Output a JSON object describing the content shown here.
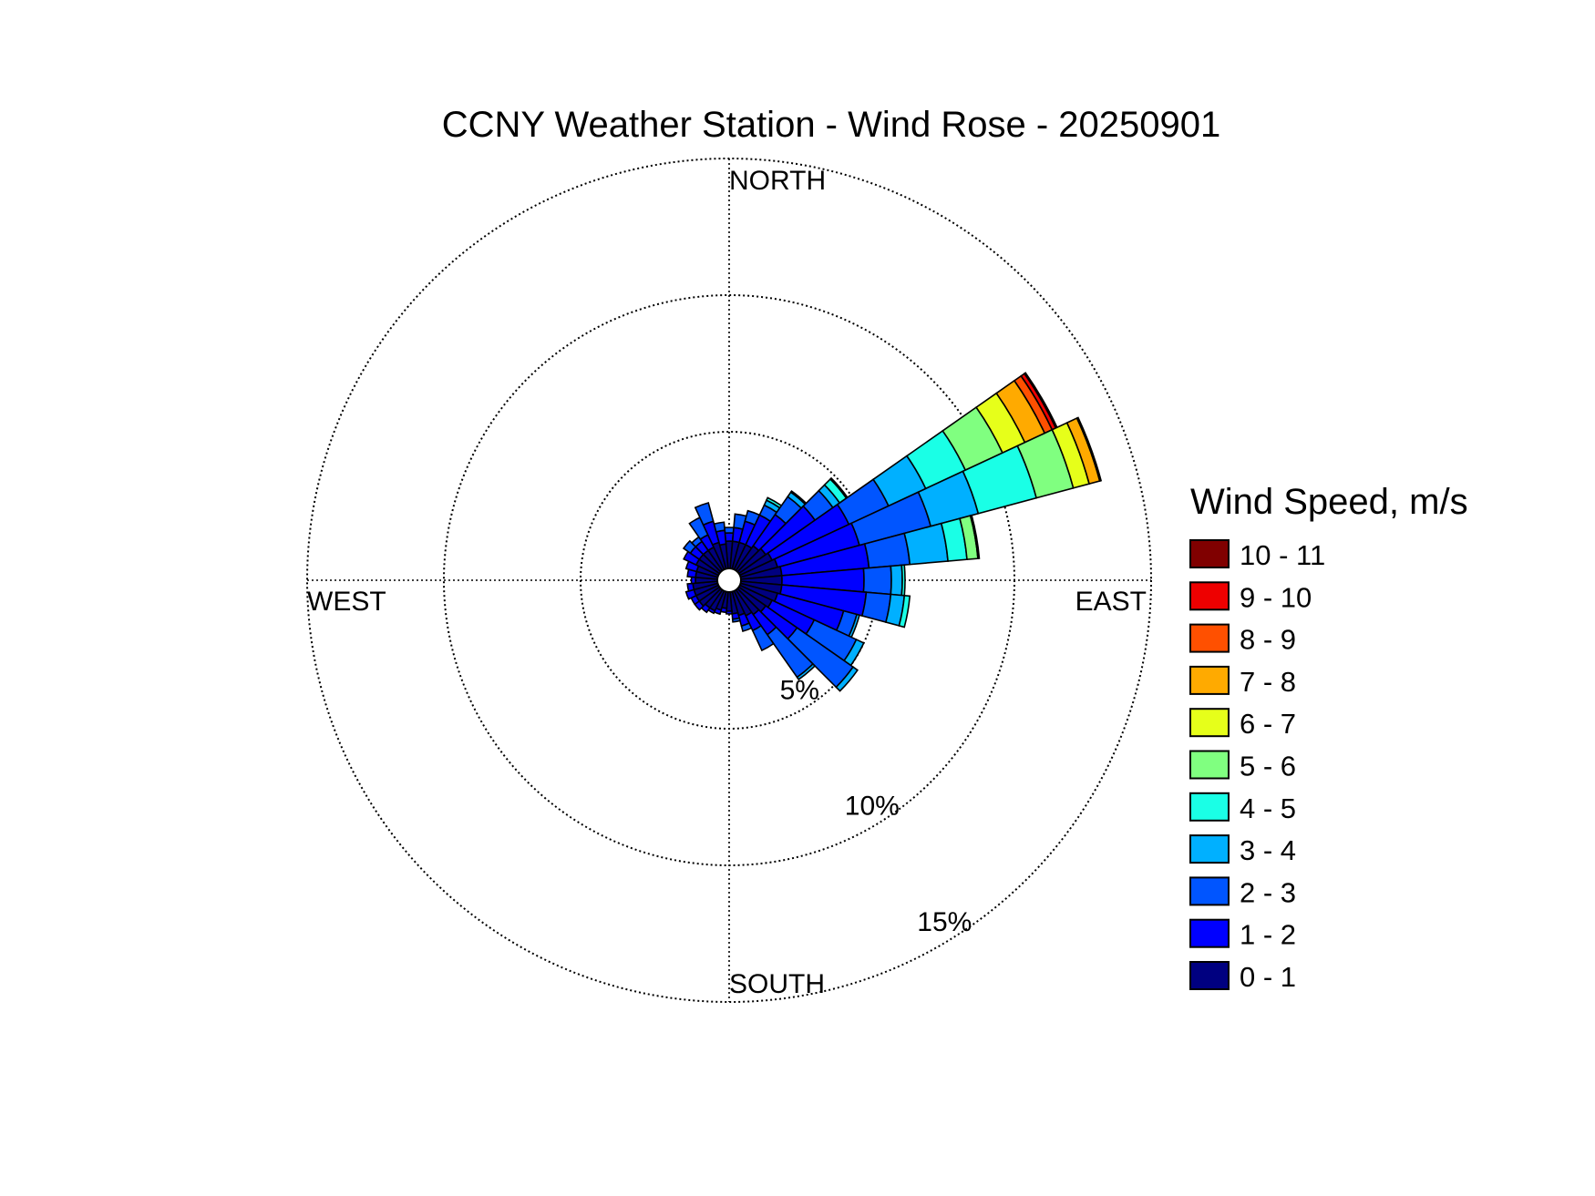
{
  "chart_data": {
    "type": "windrose",
    "title": "CCNY Weather Station - Wind Rose - 20250901",
    "directions": {
      "north": "NORTH",
      "south": "SOUTH",
      "east": "EAST",
      "west": "WEST"
    },
    "radial_axis": {
      "unit": "%",
      "max": 15,
      "rings": [
        5,
        10,
        15
      ],
      "ring_labels": [
        "5%",
        "10%",
        "15%"
      ]
    },
    "grid": true,
    "legend": {
      "title": "Wind Speed, m/s",
      "position": "right",
      "bins": [
        {
          "label": "10 - 11",
          "color": "#800000"
        },
        {
          "label": "9 - 10",
          "color": "#ee0000"
        },
        {
          "label": "8 - 9",
          "color": "#ff5000"
        },
        {
          "label": "7 - 8",
          "color": "#ffaa00"
        },
        {
          "label": "6 - 7",
          "color": "#e6ff1a"
        },
        {
          "label": "5 - 6",
          "color": "#80ff80"
        },
        {
          "label": "4 - 5",
          "color": "#1affe6"
        },
        {
          "label": "3 - 4",
          "color": "#00b0ff"
        },
        {
          "label": "2 - 3",
          "color": "#0055ff"
        },
        {
          "label": "1 - 2",
          "color": "#0000ff"
        },
        {
          "label": "0 - 1",
          "color": "#000080"
        }
      ]
    },
    "sector_width_deg": 10,
    "sectors_note": "Cumulative percent at upper edge of each speed bin (0-1 .. 10-11), direction in degrees clockwise from north",
    "sectors": [
      {
        "dir": 0,
        "cum": [
          1.0,
          1.3,
          1.5
        ]
      },
      {
        "dir": 10,
        "cum": [
          1.0,
          1.5,
          2.0
        ]
      },
      {
        "dir": 20,
        "cum": [
          1.0,
          1.8,
          2.2
        ]
      },
      {
        "dir": 30,
        "cum": [
          1.0,
          2.2,
          2.6,
          2.8,
          2.9
        ]
      },
      {
        "dir": 40,
        "cum": [
          1.1,
          2.5,
          3.3,
          3.5,
          3.55
        ]
      },
      {
        "dir": 50,
        "cum": [
          1.2,
          3.4,
          4.2,
          4.5,
          4.8,
          4.85
        ]
      },
      {
        "dir": 60,
        "cum": [
          1.3,
          4.4,
          6.0,
          7.5,
          9.1,
          10.6,
          11.5,
          12.3,
          12.6,
          12.75,
          12.8
        ]
      },
      {
        "dir": 70,
        "cum": [
          1.4,
          4.5,
          7.2,
          9.0,
          11.2,
          12.6,
          13.2,
          13.6,
          13.65
        ]
      },
      {
        "dir": 80,
        "cum": [
          1.5,
          4.7,
          6.2,
          7.6,
          8.3,
          8.7,
          8.75
        ]
      },
      {
        "dir": 90,
        "cum": [
          1.5,
          4.5,
          5.5,
          5.9,
          6.0
        ]
      },
      {
        "dir": 100,
        "cum": [
          1.5,
          4.6,
          5.5,
          6.0,
          6.2
        ]
      },
      {
        "dir": 110,
        "cum": [
          1.4,
          3.9,
          4.4,
          4.5
        ]
      },
      {
        "dir": 120,
        "cum": [
          1.3,
          3.0,
          4.7,
          5.0
        ]
      },
      {
        "dir": 130,
        "cum": [
          1.2,
          2.6,
          5.1,
          5.3
        ]
      },
      {
        "dir": 140,
        "cum": [
          1.1,
          2.0,
          3.9,
          4.0
        ]
      },
      {
        "dir": 150,
        "cum": [
          1.0,
          1.6,
          2.4
        ]
      },
      {
        "dir": 160,
        "cum": [
          0.9,
          1.3,
          1.5
        ]
      },
      {
        "dir": 170,
        "cum": [
          0.8,
          1.0,
          1.1
        ]
      },
      {
        "dir": 180,
        "cum": [
          0.7,
          0.8
        ]
      },
      {
        "dir": 190,
        "cum": [
          0.6,
          0.75
        ]
      },
      {
        "dir": 200,
        "cum": [
          0.7,
          0.85
        ]
      },
      {
        "dir": 210,
        "cum": [
          0.8,
          0.9
        ]
      },
      {
        "dir": 220,
        "cum": [
          0.8,
          1.0
        ]
      },
      {
        "dir": 230,
        "cum": [
          0.9,
          1.1
        ]
      },
      {
        "dir": 240,
        "cum": [
          0.9,
          1.1
        ]
      },
      {
        "dir": 250,
        "cum": [
          0.9,
          1.2
        ]
      },
      {
        "dir": 260,
        "cum": [
          0.9,
          1.1
        ]
      },
      {
        "dir": 270,
        "cum": [
          0.8,
          0.95
        ]
      },
      {
        "dir": 280,
        "cum": [
          0.8,
          1.1
        ]
      },
      {
        "dir": 290,
        "cum": [
          0.8,
          1.2
        ]
      },
      {
        "dir": 300,
        "cum": [
          0.9,
          1.4
        ]
      },
      {
        "dir": 310,
        "cum": [
          0.9,
          1.3,
          1.6
        ]
      },
      {
        "dir": 320,
        "cum": [
          0.9,
          1.3,
          1.5
        ]
      },
      {
        "dir": 330,
        "cum": [
          0.9,
          1.4,
          2.1
        ]
      },
      {
        "dir": 340,
        "cum": [
          1.0,
          1.8,
          2.5
        ]
      },
      {
        "dir": 350,
        "cum": [
          0.9,
          1.4,
          1.7
        ]
      }
    ]
  }
}
